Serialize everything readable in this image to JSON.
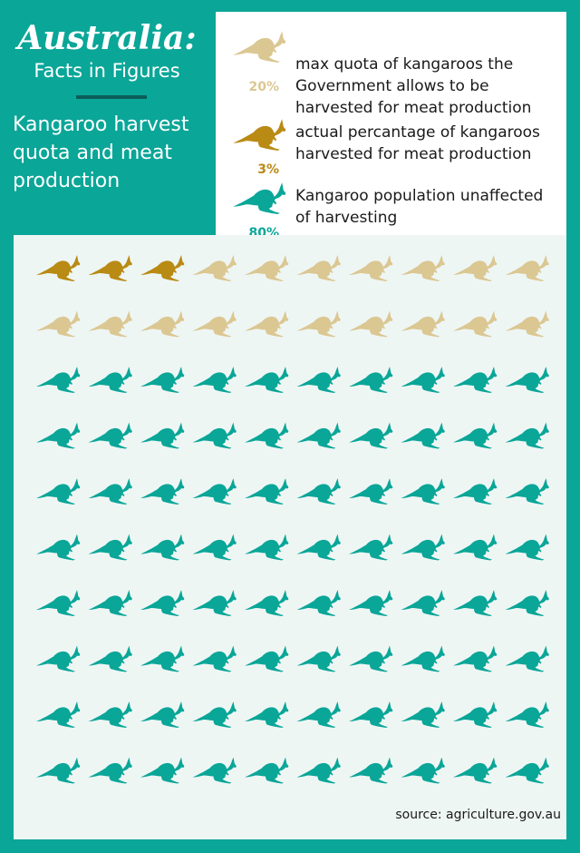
{
  "header": {
    "title": "Australia:",
    "subtitle": "Facts in Figures",
    "heading": "Kangaroo  harvest quota and meat production"
  },
  "legend": [
    {
      "percent": "20%",
      "text": "max quota of kangaroos the Government allows to be harvested for meat production",
      "color": "#dbc792"
    },
    {
      "percent": "3%",
      "text": "actual percantage of kangaroos harvested for meat production",
      "color": "#b98a14"
    },
    {
      "percent": "80%",
      "text": "Kangaroo population unaffected of harvesting",
      "color": "#0aa698"
    }
  ],
  "chart_data": {
    "type": "waffle",
    "total_icons": 100,
    "rows": 10,
    "columns": 10,
    "icon": "kangaroo-icon",
    "segments": [
      {
        "category": "actual harvested",
        "percent": 3,
        "color": "#b98a14"
      },
      {
        "category": "max quota (remaining)",
        "percent": 17,
        "color": "#dbc792"
      },
      {
        "category": "unaffected",
        "percent": 80,
        "color": "#0aa698"
      }
    ]
  },
  "footer": {
    "source": "source: agriculture.gov.au"
  }
}
